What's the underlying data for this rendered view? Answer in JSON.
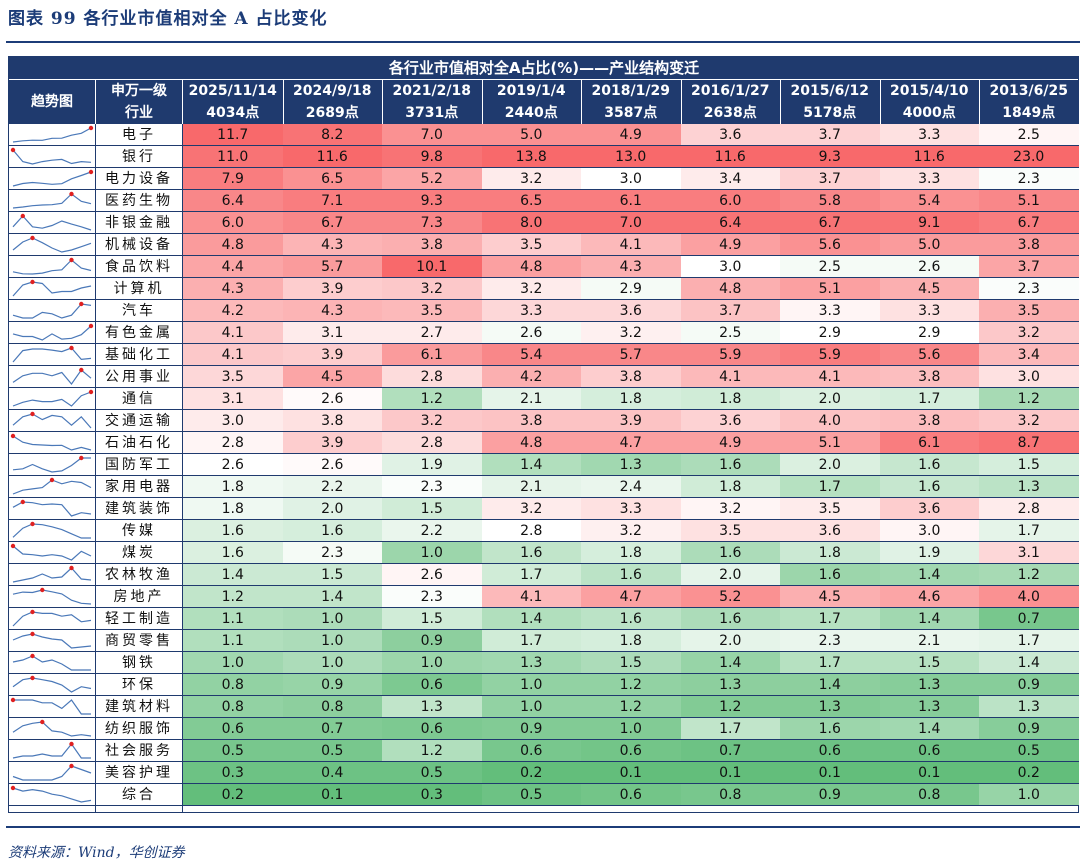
{
  "figure": {
    "title": "图表 99   各行业市值相对全 A 占比变化",
    "source": "资料来源：Wind，华创证券"
  },
  "chart_data": {
    "type": "table",
    "title": "各行业市值相对全A占比(%)——产业结构变迁",
    "trend_header": "趋势图",
    "industry_header": [
      "申万一级",
      "行业"
    ],
    "columns": [
      {
        "date": "2025/11/14",
        "index_level": "4034点"
      },
      {
        "date": "2024/9/18",
        "index_level": "2689点"
      },
      {
        "date": "2021/2/18",
        "index_level": "3731点"
      },
      {
        "date": "2019/1/4",
        "index_level": "2440点"
      },
      {
        "date": "2018/1/29",
        "index_level": "3587点"
      },
      {
        "date": "2016/1/27",
        "index_level": "2638点"
      },
      {
        "date": "2015/6/12",
        "index_level": "5178点"
      },
      {
        "date": "2015/4/10",
        "index_level": "4000点"
      },
      {
        "date": "2013/6/25",
        "index_level": "1849点"
      }
    ],
    "rows": [
      {
        "industry": "电子",
        "values": [
          "11.7",
          "8.2",
          "7.0",
          "5.0",
          "4.9",
          "3.6",
          "3.7",
          "3.3",
          "2.5"
        ]
      },
      {
        "industry": "银行",
        "values": [
          "11.0",
          "11.6",
          "9.8",
          "13.8",
          "13.0",
          "11.6",
          "9.3",
          "11.6",
          "23.0"
        ]
      },
      {
        "industry": "电力设备",
        "values": [
          "7.9",
          "6.5",
          "5.2",
          "3.2",
          "3.0",
          "3.4",
          "3.7",
          "3.3",
          "2.3"
        ]
      },
      {
        "industry": "医药生物",
        "values": [
          "6.4",
          "7.1",
          "9.3",
          "6.5",
          "6.1",
          "6.0",
          "5.8",
          "5.4",
          "5.1"
        ]
      },
      {
        "industry": "非银金融",
        "values": [
          "6.0",
          "6.7",
          "7.3",
          "8.0",
          "7.0",
          "6.4",
          "6.7",
          "9.1",
          "6.7"
        ]
      },
      {
        "industry": "机械设备",
        "values": [
          "4.8",
          "4.3",
          "3.8",
          "3.5",
          "4.1",
          "4.9",
          "5.6",
          "5.0",
          "3.8"
        ]
      },
      {
        "industry": "食品饮料",
        "values": [
          "4.4",
          "5.7",
          "10.1",
          "4.8",
          "4.3",
          "3.0",
          "2.5",
          "2.6",
          "3.7"
        ]
      },
      {
        "industry": "计算机",
        "values": [
          "4.3",
          "3.9",
          "3.2",
          "3.2",
          "2.9",
          "4.8",
          "5.1",
          "4.5",
          "2.3"
        ]
      },
      {
        "industry": "汽车",
        "values": [
          "4.2",
          "4.3",
          "3.5",
          "3.3",
          "3.6",
          "3.7",
          "3.3",
          "3.3",
          "3.5"
        ]
      },
      {
        "industry": "有色金属",
        "values": [
          "4.1",
          "3.1",
          "2.7",
          "2.6",
          "3.2",
          "2.5",
          "2.9",
          "2.9",
          "3.2"
        ]
      },
      {
        "industry": "基础化工",
        "values": [
          "4.1",
          "3.9",
          "6.1",
          "5.4",
          "5.7",
          "5.9",
          "5.9",
          "5.6",
          "3.4"
        ]
      },
      {
        "industry": "公用事业",
        "values": [
          "3.5",
          "4.5",
          "2.8",
          "4.2",
          "3.8",
          "4.1",
          "4.1",
          "3.8",
          "3.0"
        ]
      },
      {
        "industry": "通信",
        "values": [
          "3.1",
          "2.6",
          "1.2",
          "2.1",
          "1.8",
          "1.8",
          "2.0",
          "1.7",
          "1.2"
        ]
      },
      {
        "industry": "交通运输",
        "values": [
          "3.0",
          "3.8",
          "3.2",
          "3.8",
          "3.9",
          "3.6",
          "4.0",
          "3.8",
          "3.2"
        ]
      },
      {
        "industry": "石油石化",
        "values": [
          "2.8",
          "3.9",
          "2.8",
          "4.8",
          "4.7",
          "4.9",
          "5.1",
          "6.1",
          "8.7"
        ]
      },
      {
        "industry": "国防军工",
        "values": [
          "2.6",
          "2.6",
          "1.9",
          "1.4",
          "1.3",
          "1.6",
          "2.0",
          "1.6",
          "1.5"
        ]
      },
      {
        "industry": "家用电器",
        "values": [
          "1.8",
          "2.2",
          "2.3",
          "2.1",
          "2.4",
          "1.8",
          "1.7",
          "1.6",
          "1.3"
        ]
      },
      {
        "industry": "建筑装饰",
        "values": [
          "1.8",
          "2.0",
          "1.5",
          "3.2",
          "3.3",
          "3.2",
          "3.5",
          "3.6",
          "2.8"
        ]
      },
      {
        "industry": "传媒",
        "values": [
          "1.6",
          "1.6",
          "2.2",
          "2.8",
          "3.2",
          "3.5",
          "3.6",
          "3.0",
          "1.7"
        ]
      },
      {
        "industry": "煤炭",
        "values": [
          "1.6",
          "2.3",
          "1.0",
          "1.6",
          "1.8",
          "1.6",
          "1.8",
          "1.9",
          "3.1"
        ]
      },
      {
        "industry": "农林牧渔",
        "values": [
          "1.4",
          "1.5",
          "2.6",
          "1.7",
          "1.6",
          "2.0",
          "1.6",
          "1.4",
          "1.2"
        ]
      },
      {
        "industry": "房地产",
        "values": [
          "1.2",
          "1.4",
          "2.3",
          "4.1",
          "4.7",
          "5.2",
          "4.5",
          "4.6",
          "4.0"
        ]
      },
      {
        "industry": "轻工制造",
        "values": [
          "1.1",
          "1.0",
          "1.5",
          "1.4",
          "1.6",
          "1.6",
          "1.7",
          "1.4",
          "0.7"
        ]
      },
      {
        "industry": "商贸零售",
        "values": [
          "1.1",
          "1.0",
          "0.9",
          "1.7",
          "1.8",
          "2.0",
          "2.3",
          "2.1",
          "1.7"
        ]
      },
      {
        "industry": "钢铁",
        "values": [
          "1.0",
          "1.0",
          "1.0",
          "1.3",
          "1.5",
          "1.4",
          "1.7",
          "1.5",
          "1.4"
        ]
      },
      {
        "industry": "环保",
        "values": [
          "0.8",
          "0.9",
          "0.6",
          "1.0",
          "1.2",
          "1.3",
          "1.4",
          "1.3",
          "0.9"
        ]
      },
      {
        "industry": "建筑材料",
        "values": [
          "0.8",
          "0.8",
          "1.3",
          "1.0",
          "1.2",
          "1.2",
          "1.3",
          "1.3",
          "1.3"
        ]
      },
      {
        "industry": "纺织服饰",
        "values": [
          "0.6",
          "0.7",
          "0.6",
          "0.9",
          "1.0",
          "1.7",
          "1.6",
          "1.4",
          "0.9"
        ]
      },
      {
        "industry": "社会服务",
        "values": [
          "0.5",
          "0.5",
          "1.2",
          "0.6",
          "0.6",
          "0.7",
          "0.6",
          "0.6",
          "0.5"
        ]
      },
      {
        "industry": "美容护理",
        "values": [
          "0.3",
          "0.4",
          "0.5",
          "0.2",
          "0.1",
          "0.1",
          "0.1",
          "0.1",
          "0.2"
        ]
      },
      {
        "industry": "综合",
        "values": [
          "0.2",
          "0.1",
          "0.3",
          "0.5",
          "0.6",
          "0.8",
          "0.9",
          "0.8",
          "1.0"
        ]
      }
    ],
    "color_scale": {
      "high": "#f8696b",
      "mid": "#ffffff",
      "low": "#63be7b",
      "scope": "per-column"
    },
    "sparkline": {
      "order": "oldest-to-newest",
      "line_color": "#4a78b8",
      "marker_color": "#e02020",
      "marker": "maximum"
    }
  }
}
